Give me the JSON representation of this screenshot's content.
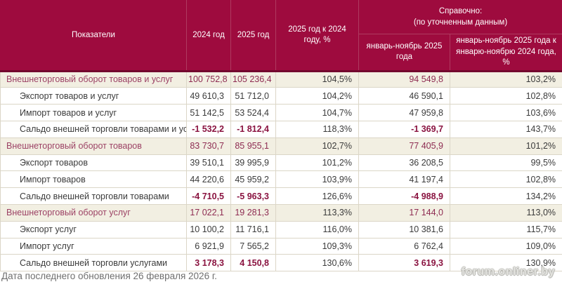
{
  "table": {
    "header": {
      "indicators": "Показатели",
      "year_2024": "2024 год",
      "year_2025": "2025 год",
      "ratio": "2025 год к 2024 году, %",
      "reference_line1": "Справочно:",
      "reference_line2": "(по уточненным данным)",
      "jan_nov_2025": "январь-ноябрь 2025 года",
      "jan_nov_ratio": "январь-ноябрь 2025 года к январю-ноябрю 2024 года, %"
    },
    "rows": [
      {
        "type": "section",
        "label": "Внешнеторговый оборот товаров и услуг",
        "values": [
          "100 752,8",
          "105 236,4",
          "104,5%",
          "94 549,8",
          "103,2%"
        ]
      },
      {
        "type": "sub",
        "label": "Экспорт товаров и услуг",
        "values": [
          "49 610,3",
          "51 712,0",
          "104,2%",
          "46 590,1",
          "102,8%"
        ]
      },
      {
        "type": "sub",
        "label": "Импорт товаров и услуг",
        "values": [
          "51 142,5",
          "53 524,4",
          "104,7%",
          "47 959,8",
          "103,6%"
        ]
      },
      {
        "type": "saldo",
        "label": "Сальдо внешней торговли товарами и услугами",
        "values": [
          "-1 532,2",
          "-1 812,4",
          "118,3%",
          "-1 369,7",
          "143,7%"
        ]
      },
      {
        "type": "section",
        "label": "Внешнеторговый оборот товаров",
        "values": [
          "83 730,7",
          "85 955,1",
          "102,7%",
          "77 405,9",
          "101,2%"
        ]
      },
      {
        "type": "sub",
        "label": "Экспорт товаров",
        "values": [
          "39 510,1",
          "39 995,9",
          "101,2%",
          "36 208,5",
          "99,5%"
        ]
      },
      {
        "type": "sub",
        "label": "Импорт товаров",
        "values": [
          "44 220,6",
          "45 959,2",
          "103,9%",
          "41 197,4",
          "102,8%"
        ]
      },
      {
        "type": "saldo",
        "label": "Сальдо внешней торговли товарами",
        "values": [
          "-4 710,5",
          "-5 963,3",
          "126,6%",
          "-4 988,9",
          "134,2%"
        ]
      },
      {
        "type": "section",
        "label": "Внешнеторговый оборот услуг",
        "values": [
          "17 022,1",
          "19 281,3",
          "113,3%",
          "17 144,0",
          "113,0%"
        ]
      },
      {
        "type": "sub",
        "label": "Экспорт услуг",
        "values": [
          "10 100,2",
          "11 716,1",
          "116,0%",
          "10 381,6",
          "115,7%"
        ]
      },
      {
        "type": "sub",
        "label": "Импорт услуг",
        "values": [
          "6 921,9",
          "7 565,2",
          "109,3%",
          "6 762,4",
          "109,0%"
        ]
      },
      {
        "type": "saldo",
        "label": "Сальдо внешней торговли услугами",
        "values": [
          "3 178,3",
          "4 150,8",
          "130,6%",
          "3 619,3",
          "130,9%"
        ]
      }
    ]
  },
  "footer": {
    "updated": "Дата последнего обновления 26 февраля 2026 г.",
    "watermark": "forum.onliner.by"
  },
  "colors": {
    "header_bg": "#9E0B3E",
    "header_text": "#FFFFFF",
    "section_bg": "#F2EFE2",
    "section_text": "#9C4265",
    "saldo_value": "#8A1340",
    "body_text": "#3B3B3B",
    "grid_line": "#DBD6C7"
  }
}
